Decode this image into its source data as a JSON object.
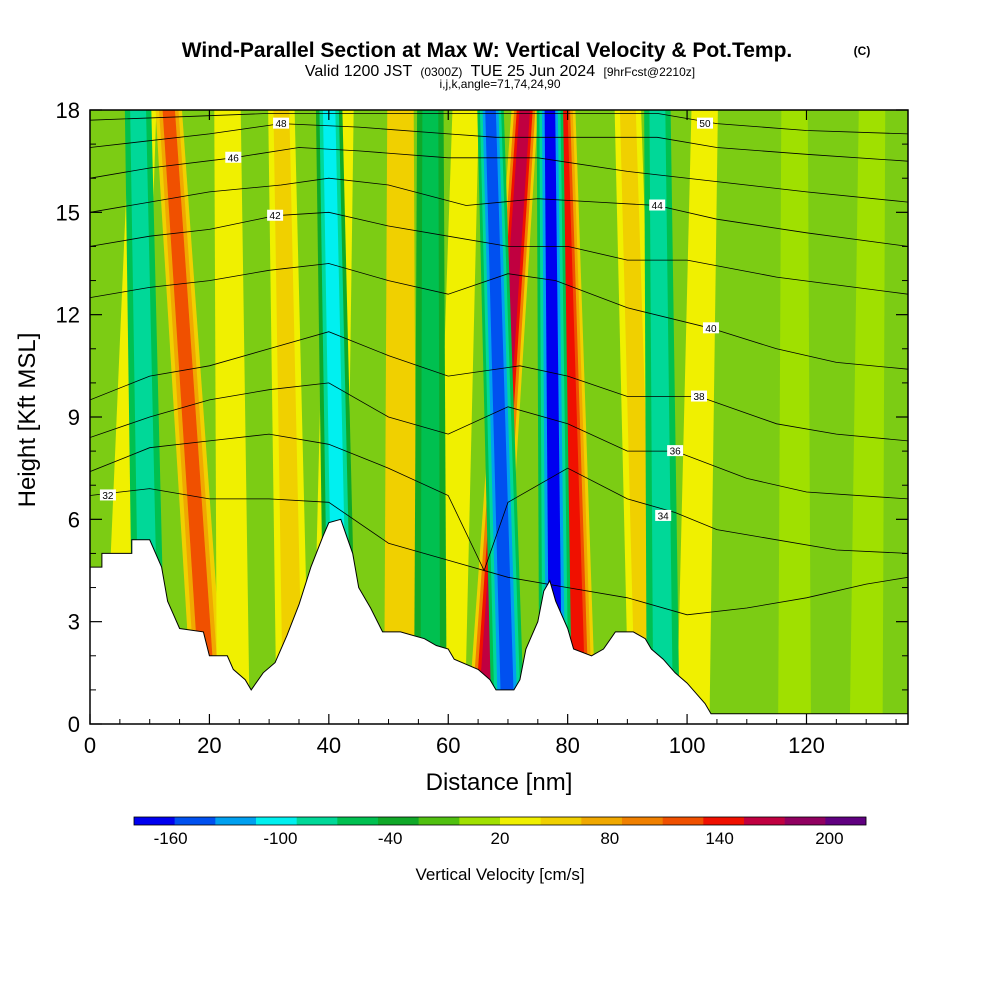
{
  "header": {
    "title": "Wind-Parallel Section at Max W: Vertical Velocity & Pot.Temp.",
    "copyright": "(C)",
    "valid_prefix": "Valid 1200 JST",
    "valid_utc": "(0300Z)",
    "valid_date": "TUE 25 Jun 2024",
    "forecast": "[9hrFcst@2210z]",
    "params": "i,j,k,angle=71,74,24,90"
  },
  "chart_data": {
    "type": "heatmap",
    "title": "Wind-Parallel Section at Max W: Vertical Velocity & Pot.Temp.",
    "xlabel": "Distance [nm]",
    "ylabel": "Height [Kft MSL]",
    "xlim": [
      0,
      137
    ],
    "ylim": [
      0,
      18
    ],
    "x_ticks": [
      "0",
      "20",
      "40",
      "60",
      "80",
      "100",
      "120"
    ],
    "y_ticks": [
      "0",
      "3",
      "6",
      "9",
      "12",
      "15",
      "18"
    ],
    "colorbar": {
      "label": "Vertical Velocity [cm/s]",
      "tick_labels": [
        "-160",
        "-100",
        "-40",
        "20",
        "80",
        "140",
        "200"
      ],
      "colors": [
        "#0000f0",
        "#0050f0",
        "#00a0f0",
        "#00f0f0",
        "#00d898",
        "#00c050",
        "#10a828",
        "#50c010",
        "#a0e000",
        "#f0f000",
        "#f0d000",
        "#f0a800",
        "#f08000",
        "#f05000",
        "#f01000",
        "#c00040",
        "#900060",
        "#600080"
      ]
    },
    "updraft_bands": [
      {
        "x_base": 5,
        "x_top": 9,
        "w": 20
      },
      {
        "x_base": 20,
        "x_top": 13,
        "w": 120
      },
      {
        "x_base": 24,
        "x_top": 23,
        "w": 40
      },
      {
        "x_base": 34,
        "x_top": 32,
        "w": 60
      },
      {
        "x_base": 40,
        "x_top": 42,
        "w": 40
      },
      {
        "x_base": 52,
        "x_top": 52,
        "w": 50
      },
      {
        "x_base": 60,
        "x_top": 63,
        "w": 30
      },
      {
        "x_base": 66,
        "x_top": 73,
        "w": 170
      },
      {
        "x_base": 82,
        "x_top": 79,
        "w": 150
      },
      {
        "x_base": 93,
        "x_top": 90,
        "w": 60
      },
      {
        "x_base": 101,
        "x_top": 103,
        "w": 25
      },
      {
        "x_base": 118,
        "x_top": 118,
        "w": 15
      },
      {
        "x_base": 130,
        "x_top": 131,
        "w": 10
      }
    ],
    "downdraft_bands": [
      {
        "x_base": 10,
        "x_top": 8,
        "w": -90
      },
      {
        "x_base": 42,
        "x_top": 40,
        "w": -100
      },
      {
        "x_base": 57,
        "x_top": 57,
        "w": -60
      },
      {
        "x_base": 70,
        "x_top": 67,
        "w": -150
      },
      {
        "x_base": 78,
        "x_top": 77,
        "w": -160
      },
      {
        "x_base": 96,
        "x_top": 95,
        "w": -80
      }
    ],
    "terrain": [
      [
        0,
        4.6
      ],
      [
        2,
        4.6
      ],
      [
        2,
        5.0
      ],
      [
        7,
        5.0
      ],
      [
        7,
        5.4
      ],
      [
        10,
        5.4
      ],
      [
        12,
        4.6
      ],
      [
        13,
        3.6
      ],
      [
        14,
        3.2
      ],
      [
        15,
        2.8
      ],
      [
        19,
        2.7
      ],
      [
        20,
        2.0
      ],
      [
        23,
        2.0
      ],
      [
        24,
        1.6
      ],
      [
        26,
        1.3
      ],
      [
        27,
        1.0
      ],
      [
        29,
        1.5
      ],
      [
        31,
        1.8
      ],
      [
        33,
        2.6
      ],
      [
        35,
        3.5
      ],
      [
        37,
        4.6
      ],
      [
        39,
        5.5
      ],
      [
        40,
        5.9
      ],
      [
        42,
        6.0
      ],
      [
        43,
        5.5
      ],
      [
        44,
        5.0
      ],
      [
        45,
        4.0
      ],
      [
        47,
        3.4
      ],
      [
        49,
        2.7
      ],
      [
        52,
        2.7
      ],
      [
        56,
        2.5
      ],
      [
        58,
        2.3
      ],
      [
        60,
        2.2
      ],
      [
        61,
        1.9
      ],
      [
        65,
        1.6
      ],
      [
        67,
        1.3
      ],
      [
        68,
        1.0
      ],
      [
        71,
        1.0
      ],
      [
        72,
        1.3
      ],
      [
        73,
        2.2
      ],
      [
        75,
        3.0
      ],
      [
        76,
        3.9
      ],
      [
        77,
        4.2
      ],
      [
        78,
        3.6
      ],
      [
        80,
        2.8
      ],
      [
        81,
        2.2
      ],
      [
        84,
        2.0
      ],
      [
        86,
        2.2
      ],
      [
        88,
        2.7
      ],
      [
        91,
        2.7
      ],
      [
        93,
        2.5
      ],
      [
        94,
        2.2
      ],
      [
        96,
        1.9
      ],
      [
        98,
        1.5
      ],
      [
        100,
        1.2
      ],
      [
        102,
        0.8
      ],
      [
        103,
        0.6
      ],
      [
        104,
        0.3
      ],
      [
        137,
        0.3
      ]
    ],
    "theta_contours": [
      {
        "level": "32",
        "points": [
          [
            0,
            6.7
          ],
          [
            10,
            6.9
          ],
          [
            20,
            6.6
          ],
          [
            30,
            6.6
          ],
          [
            40,
            6.5
          ],
          [
            50,
            5.3
          ],
          [
            60,
            4.8
          ],
          [
            70,
            4.3
          ],
          [
            80,
            4.0
          ],
          [
            90,
            3.7
          ],
          [
            100,
            3.2
          ],
          [
            110,
            3.4
          ],
          [
            120,
            3.7
          ],
          [
            130,
            4.1
          ],
          [
            137,
            4.3
          ]
        ],
        "label_at": [
          3,
          6.7
        ]
      },
      {
        "level": "34",
        "points": [
          [
            0,
            7.4
          ],
          [
            10,
            8.1
          ],
          [
            20,
            8.3
          ],
          [
            30,
            8.5
          ],
          [
            40,
            8.2
          ],
          [
            50,
            7.5
          ],
          [
            60,
            6.7
          ],
          [
            66,
            4.5
          ],
          [
            70,
            6.5
          ],
          [
            80,
            7.5
          ],
          [
            90,
            6.6
          ],
          [
            98,
            6.2
          ],
          [
            105,
            5.7
          ],
          [
            115,
            5.4
          ],
          [
            125,
            5.1
          ],
          [
            137,
            5.0
          ]
        ],
        "label_at": [
          96,
          6.1
        ]
      },
      {
        "level": "36",
        "points": [
          [
            0,
            8.4
          ],
          [
            10,
            9.0
          ],
          [
            20,
            9.5
          ],
          [
            30,
            9.8
          ],
          [
            40,
            10.0
          ],
          [
            50,
            9.0
          ],
          [
            60,
            8.5
          ],
          [
            70,
            9.3
          ],
          [
            80,
            8.8
          ],
          [
            90,
            8.0
          ],
          [
            98,
            8.0
          ],
          [
            110,
            7.2
          ],
          [
            120,
            6.8
          ],
          [
            137,
            6.6
          ]
        ],
        "label_at": [
          98,
          8.0
        ]
      },
      {
        "level": "38",
        "points": [
          [
            0,
            9.5
          ],
          [
            10,
            10.2
          ],
          [
            20,
            10.5
          ],
          [
            30,
            11.0
          ],
          [
            40,
            11.5
          ],
          [
            50,
            10.8
          ],
          [
            60,
            10.2
          ],
          [
            72,
            10.5
          ],
          [
            80,
            10.2
          ],
          [
            90,
            9.6
          ],
          [
            102,
            9.6
          ],
          [
            115,
            8.8
          ],
          [
            125,
            8.5
          ],
          [
            137,
            8.3
          ]
        ],
        "label_at": [
          102,
          9.6
        ]
      },
      {
        "level": "40",
        "points": [
          [
            0,
            12.5
          ],
          [
            10,
            12.8
          ],
          [
            20,
            13.0
          ],
          [
            30,
            13.3
          ],
          [
            40,
            13.5
          ],
          [
            50,
            13.0
          ],
          [
            60,
            12.6
          ],
          [
            70,
            13.2
          ],
          [
            78,
            13.0
          ],
          [
            90,
            12.2
          ],
          [
            104,
            11.6
          ],
          [
            115,
            11.0
          ],
          [
            125,
            10.6
          ],
          [
            137,
            10.4
          ]
        ],
        "label_at": [
          104,
          11.6
        ]
      },
      {
        "level": "42",
        "points": [
          [
            0,
            14.0
          ],
          [
            10,
            14.3
          ],
          [
            20,
            14.5
          ],
          [
            31,
            14.9
          ],
          [
            40,
            15.0
          ],
          [
            50,
            14.6
          ],
          [
            60,
            14.3
          ],
          [
            70,
            14.0
          ],
          [
            80,
            14.0
          ],
          [
            90,
            13.6
          ],
          [
            100,
            13.6
          ],
          [
            115,
            13.1
          ],
          [
            137,
            12.6
          ]
        ],
        "label_at": [
          31,
          14.9
        ]
      },
      {
        "level": "44",
        "points": [
          [
            0,
            15.0
          ],
          [
            10,
            15.3
          ],
          [
            20,
            15.6
          ],
          [
            32,
            15.8
          ],
          [
            40,
            16.0
          ],
          [
            50,
            15.8
          ],
          [
            63,
            15.2
          ],
          [
            75,
            15.4
          ],
          [
            85,
            15.3
          ],
          [
            95,
            15.2
          ],
          [
            105,
            14.8
          ],
          [
            120,
            14.4
          ],
          [
            137,
            14.0
          ]
        ],
        "label_at": [
          95,
          15.2
        ]
      },
      {
        "level": "46",
        "points": [
          [
            0,
            16.0
          ],
          [
            10,
            16.3
          ],
          [
            24,
            16.6
          ],
          [
            35,
            16.9
          ],
          [
            45,
            16.8
          ],
          [
            60,
            16.6
          ],
          [
            75,
            16.6
          ],
          [
            90,
            16.2
          ],
          [
            105,
            15.9
          ],
          [
            120,
            15.6
          ],
          [
            137,
            15.3
          ]
        ],
        "label_at": [
          24,
          16.6
        ]
      },
      {
        "level": "48",
        "points": [
          [
            0,
            16.9
          ],
          [
            10,
            17.1
          ],
          [
            20,
            17.3
          ],
          [
            32,
            17.6
          ],
          [
            45,
            17.5
          ],
          [
            60,
            17.3
          ],
          [
            68,
            17.2
          ],
          [
            80,
            17.2
          ],
          [
            95,
            17.2
          ],
          [
            105,
            16.9
          ],
          [
            120,
            16.7
          ],
          [
            137,
            16.5
          ]
        ],
        "label_at": [
          32,
          17.6
        ]
      },
      {
        "level": "50",
        "points": [
          [
            0,
            17.7
          ],
          [
            15,
            17.8
          ],
          [
            30,
            17.9
          ],
          [
            45,
            17.9
          ],
          [
            60,
            17.9
          ],
          [
            80,
            17.9
          ],
          [
            95,
            17.9
          ],
          [
            105,
            17.6
          ],
          [
            120,
            17.4
          ],
          [
            137,
            17.3
          ]
        ],
        "label_at": [
          103,
          17.6
        ]
      }
    ]
  }
}
